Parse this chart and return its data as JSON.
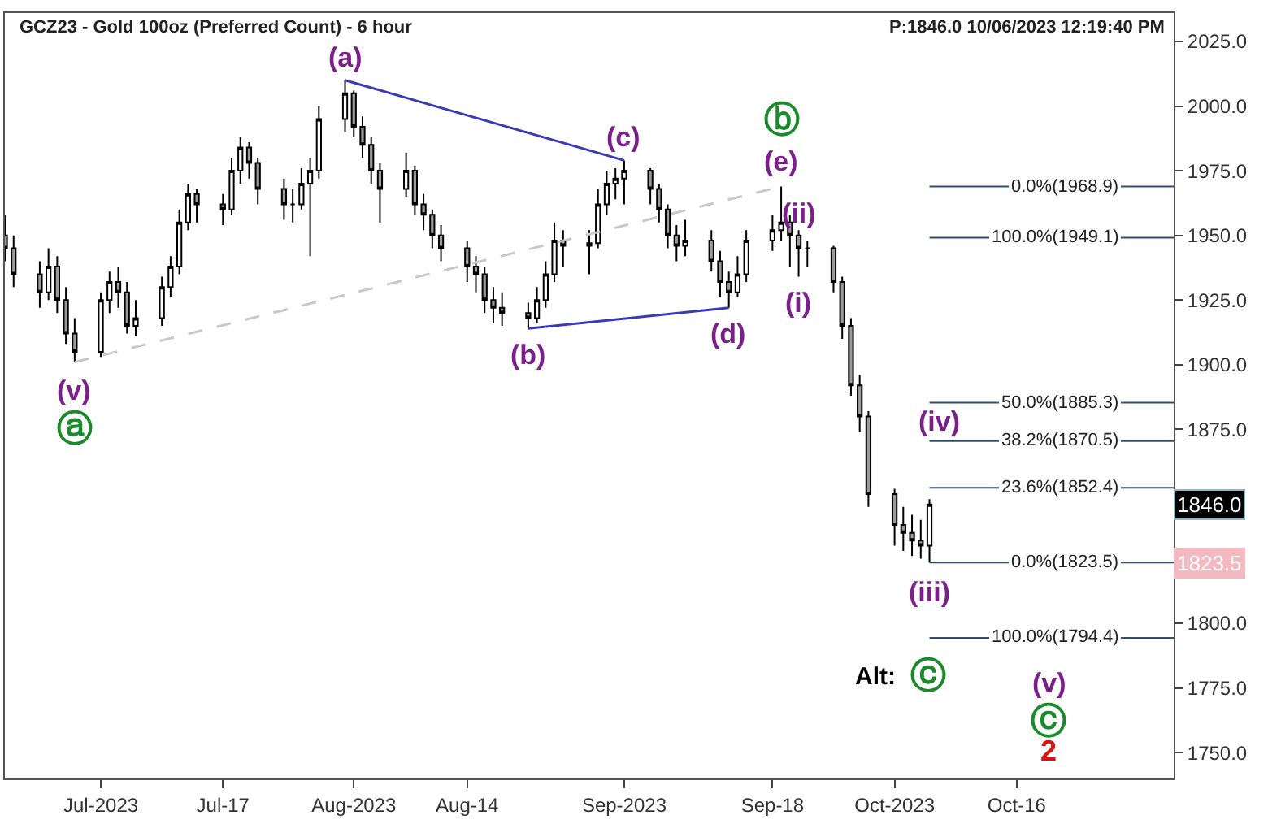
{
  "chart_data": {
    "type": "candlestick",
    "title": "GCZ23 - Gold 100oz (Preferred Count) - 6 hour",
    "subtitle": "P:1846.0 10/06/2023 12:19:40 PM",
    "x": [
      "2023-06-22",
      "2023-06-23",
      "2023-06-26",
      "2023-06-27",
      "2023-06-28",
      "2023-06-29",
      "2023-06-30",
      "2023-07-03",
      "2023-07-04",
      "2023-07-05",
      "2023-07-06",
      "2023-07-07",
      "2023-07-10",
      "2023-07-11",
      "2023-07-12",
      "2023-07-13",
      "2023-07-14",
      "2023-07-17",
      "2023-07-18",
      "2023-07-19",
      "2023-07-20",
      "2023-07-21",
      "2023-07-24",
      "2023-07-25",
      "2023-07-26",
      "2023-07-27",
      "2023-07-28",
      "2023-07-31",
      "2023-08-01",
      "2023-08-02",
      "2023-08-03",
      "2023-08-04",
      "2023-08-07",
      "2023-08-08",
      "2023-08-09",
      "2023-08-10",
      "2023-08-11",
      "2023-08-14",
      "2023-08-15",
      "2023-08-16",
      "2023-08-17",
      "2023-08-18",
      "2023-08-21",
      "2023-08-22",
      "2023-08-23",
      "2023-08-24",
      "2023-08-25",
      "2023-08-28",
      "2023-08-29",
      "2023-08-30",
      "2023-08-31",
      "2023-09-01",
      "2023-09-04",
      "2023-09-05",
      "2023-09-06",
      "2023-09-07",
      "2023-09-08",
      "2023-09-11",
      "2023-09-12",
      "2023-09-13",
      "2023-09-14",
      "2023-09-15",
      "2023-09-18",
      "2023-09-19",
      "2023-09-20",
      "2023-09-21",
      "2023-09-22",
      "2023-09-25",
      "2023-09-26",
      "2023-09-27",
      "2023-09-28",
      "2023-09-29",
      "2023-10-02",
      "2023-10-03",
      "2023-10-04",
      "2023-10-05",
      "2023-10-06"
    ],
    "ohlc": [
      [
        1950,
        1958,
        1940,
        1945
      ],
      [
        1945,
        1950,
        1930,
        1935
      ],
      [
        1935,
        1940,
        1922,
        1928
      ],
      [
        1928,
        1945,
        1925,
        1938
      ],
      [
        1938,
        1942,
        1920,
        1925
      ],
      [
        1925,
        1930,
        1908,
        1912
      ],
      [
        1912,
        1918,
        1901,
        1905
      ],
      [
        1905,
        1928,
        1903,
        1925
      ],
      [
        1925,
        1936,
        1920,
        1932
      ],
      [
        1932,
        1938,
        1922,
        1928
      ],
      [
        1928,
        1932,
        1912,
        1915
      ],
      [
        1915,
        1925,
        1911,
        1918
      ],
      [
        1918,
        1934,
        1915,
        1930
      ],
      [
        1930,
        1942,
        1926,
        1938
      ],
      [
        1938,
        1960,
        1935,
        1955
      ],
      [
        1955,
        1970,
        1952,
        1966
      ],
      [
        1966,
        1968,
        1955,
        1962
      ],
      [
        1962,
        1966,
        1954,
        1960
      ],
      [
        1960,
        1980,
        1958,
        1975
      ],
      [
        1975,
        1988,
        1970,
        1984
      ],
      [
        1984,
        1986,
        1972,
        1978
      ],
      [
        1978,
        1980,
        1962,
        1968
      ],
      [
        1968,
        1972,
        1956,
        1962
      ],
      [
        1962,
        1968,
        1955,
        1962
      ],
      [
        1962,
        1976,
        1960,
        1970
      ],
      [
        1970,
        1980,
        1942,
        1975
      ],
      [
        1975,
        2000,
        1972,
        1995
      ],
      [
        1995,
        2010,
        1990,
        2005
      ],
      [
        2005,
        2006,
        1988,
        1992
      ],
      [
        1992,
        1996,
        1980,
        1985
      ],
      [
        1985,
        1988,
        1970,
        1975
      ],
      [
        1975,
        1978,
        1955,
        1968
      ],
      [
        1968,
        1982,
        1965,
        1975
      ],
      [
        1975,
        1977,
        1958,
        1962
      ],
      [
        1962,
        1966,
        1952,
        1958
      ],
      [
        1958,
        1960,
        1945,
        1950
      ],
      [
        1950,
        1954,
        1940,
        1945
      ],
      [
        1945,
        1948,
        1932,
        1938
      ],
      [
        1938,
        1942,
        1928,
        1935
      ],
      [
        1935,
        1938,
        1920,
        1925
      ],
      [
        1925,
        1930,
        1916,
        1922
      ],
      [
        1922,
        1928,
        1915,
        1920
      ],
      [
        1920,
        1924,
        1914,
        1918
      ],
      [
        1918,
        1930,
        1916,
        1925
      ],
      [
        1925,
        1940,
        1922,
        1935
      ],
      [
        1935,
        1955,
        1932,
        1948
      ],
      [
        1948,
        1952,
        1938,
        1946
      ],
      [
        1946,
        1952,
        1935,
        1947
      ],
      [
        1947,
        1968,
        1945,
        1962
      ],
      [
        1962,
        1975,
        1958,
        1970
      ],
      [
        1970,
        1976,
        1964,
        1972
      ],
      [
        1972,
        1979,
        1962,
        1975
      ],
      [
        1975,
        1976,
        1962,
        1968
      ],
      [
        1968,
        1970,
        1955,
        1960
      ],
      [
        1960,
        1962,
        1945,
        1950
      ],
      [
        1950,
        1954,
        1940,
        1946
      ],
      [
        1946,
        1956,
        1942,
        1948
      ],
      [
        1948,
        1952,
        1936,
        1940
      ],
      [
        1940,
        1944,
        1926,
        1932
      ],
      [
        1932,
        1936,
        1922,
        1928
      ],
      [
        1928,
        1942,
        1926,
        1935
      ],
      [
        1935,
        1952,
        1932,
        1948
      ],
      [
        1948,
        1958,
        1944,
        1952
      ],
      [
        1952,
        1968.9,
        1948,
        1955
      ],
      [
        1955,
        1958,
        1938,
        1950
      ],
      [
        1950,
        1952,
        1934,
        1945
      ],
      [
        1945,
        1948,
        1938,
        1945
      ],
      [
        1945,
        1946,
        1928,
        1932
      ],
      [
        1932,
        1934,
        1910,
        1915
      ],
      [
        1915,
        1918,
        1888,
        1892
      ],
      [
        1892,
        1896,
        1874,
        1880
      ],
      [
        1880,
        1882,
        1845,
        1850
      ],
      [
        1850,
        1852,
        1830,
        1838
      ],
      [
        1838,
        1845,
        1828,
        1835
      ],
      [
        1835,
        1842,
        1826,
        1832
      ],
      [
        1832,
        1840,
        1825,
        1830
      ],
      [
        1830,
        1848,
        1823.5,
        1846
      ]
    ],
    "color": "#000000",
    "series": [
      {
        "type": "line",
        "color": "#3a3ab8",
        "x": [
          "2023-07-31",
          "2023-09-01"
        ],
        "values": [
          2010,
          1979
        ]
      },
      {
        "type": "line",
        "color": "#3a3ab8",
        "x": [
          "2023-08-21",
          "2023-09-13"
        ],
        "values": [
          1914,
          1922
        ]
      },
      {
        "type": "line",
        "color": "#c8c8c8",
        "line_style": "dashed",
        "x": [
          "2023-06-30",
          "2023-09-19"
        ],
        "values": [
          1901,
          1968.9
        ]
      }
    ],
    "ref_lines": [
      {
        "axis": "y",
        "value": 1968.9,
        "label": "0.0%(1968.9)",
        "color": "#2f4f6f"
      },
      {
        "axis": "y",
        "value": 1949.1,
        "label": "100.0%(1949.1)",
        "color": "#2f4f6f"
      },
      {
        "axis": "y",
        "value": 1885.3,
        "label": "50.0%(1885.3)",
        "color": "#2f4f6f"
      },
      {
        "axis": "y",
        "value": 1870.5,
        "label": "38.2%(1870.5)",
        "color": "#2f4f6f"
      },
      {
        "axis": "y",
        "value": 1852.4,
        "label": "23.6%(1852.4)",
        "color": "#2f4f6f"
      },
      {
        "axis": "y",
        "value": 1823.5,
        "label": "0.0%(1823.5)",
        "color": "#2f4f6f"
      },
      {
        "axis": "y",
        "value": 1794.4,
        "label": "100.0%(1794.4)",
        "color": "#2f4f6f"
      }
    ],
    "annotations": [
      "(v)",
      "ⓐ",
      "(a)",
      "(b)",
      "(c)",
      "(d)",
      "ⓑ",
      "(e)",
      "(ii)",
      "(i)",
      "(iii)",
      "(iv)",
      "Alt:",
      "ⓒ",
      "(v)",
      "ⓒ",
      "2",
      "1846.0",
      "1823.5"
    ],
    "xlim": [
      "2023-06-22",
      "2023-11-03"
    ],
    "xticks": [
      {
        "value": "2023-07-03",
        "label": "Jul-2023"
      },
      {
        "value": "2023-07-17",
        "label": "Jul-17"
      },
      {
        "value": "2023-08-01",
        "label": "Aug-2023"
      },
      {
        "value": "2023-08-14",
        "label": "Aug-14"
      },
      {
        "value": "2023-09-01",
        "label": "Sep-2023"
      },
      {
        "value": "2023-09-18",
        "label": "Sep-18"
      },
      {
        "value": "2023-10-02",
        "label": "Oct-2023"
      },
      {
        "value": "2023-10-16",
        "label": "Oct-16"
      }
    ],
    "ylim": [
      1740,
      2036
    ],
    "yticks": [
      {
        "value": 1750,
        "label": "1750.0"
      },
      {
        "value": 1775,
        "label": "1775.0"
      },
      {
        "value": 1800,
        "label": "1800.0"
      },
      {
        "value": 1875,
        "label": "1875.0"
      },
      {
        "value": 1900,
        "label": "1900.0"
      },
      {
        "value": 1925,
        "label": "1925.0"
      },
      {
        "value": 1950,
        "label": "1950.0"
      },
      {
        "value": 1975,
        "label": "1975.0"
      },
      {
        "value": 2000,
        "label": "2000.0"
      },
      {
        "value": 2025,
        "label": "2025.0"
      }
    ],
    "line_style": "solid"
  }
}
